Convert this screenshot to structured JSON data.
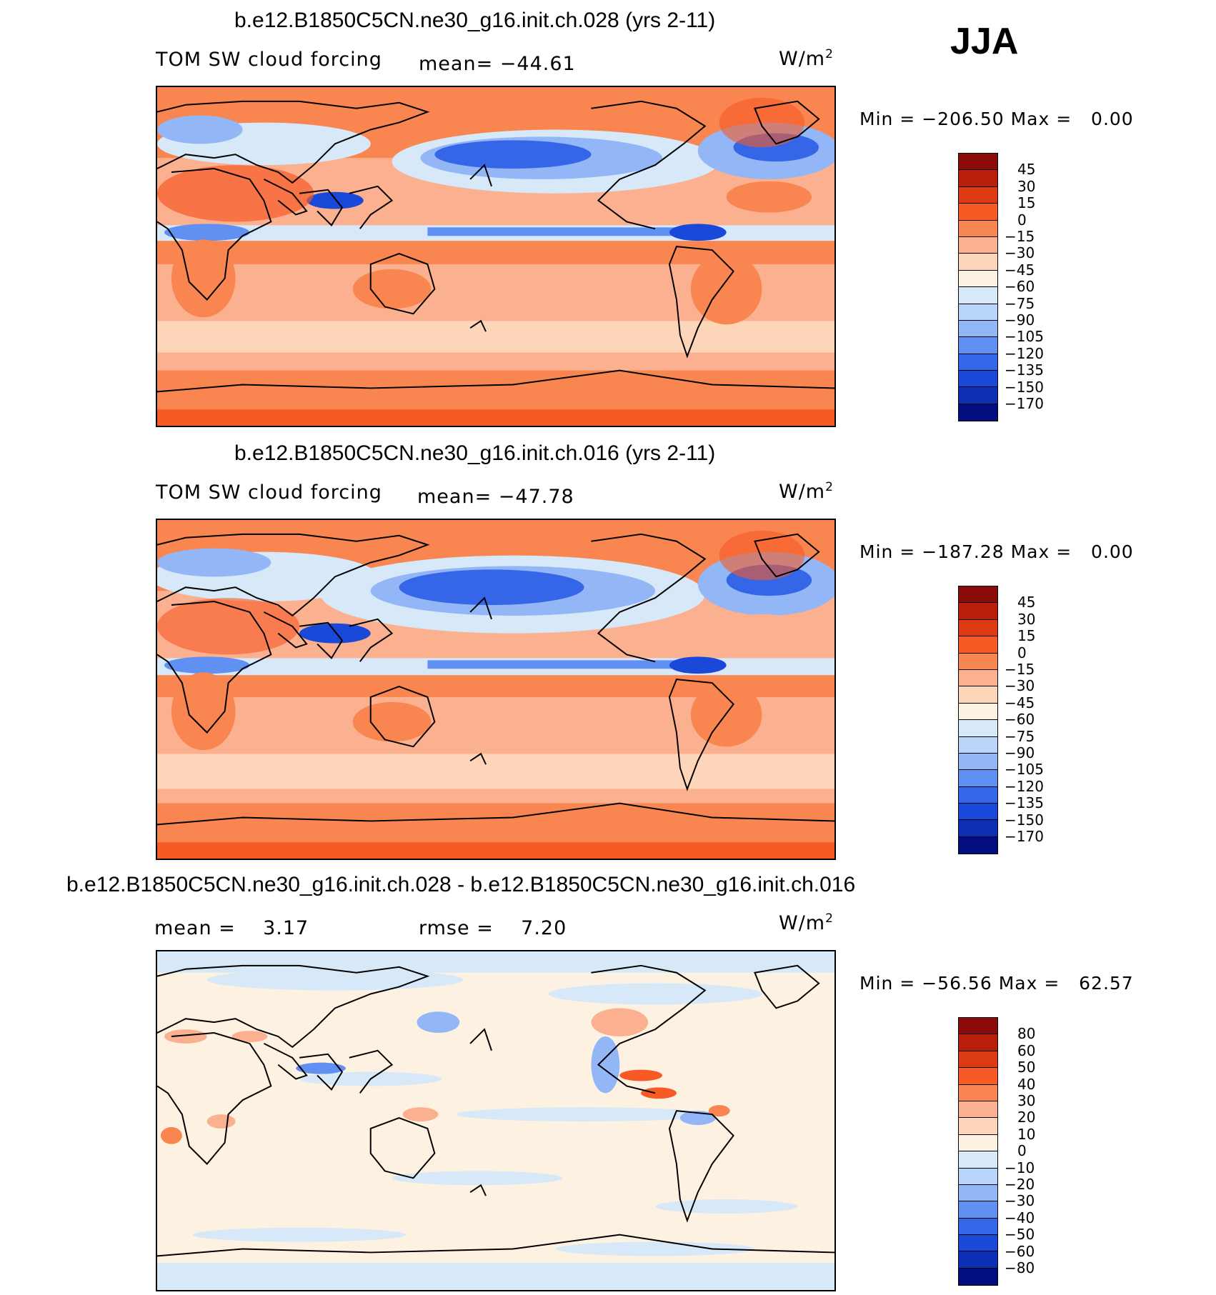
{
  "season": "JJA",
  "unit_prefix": "W/m",
  "unit_exp": "2",
  "panels": [
    {
      "title": "b.e12.B1850C5CN.ne30_g16.init.ch.028 (yrs 2-11)",
      "variable": "TOM SW cloud forcing",
      "stat1": "mean= −44.61",
      "stat2": "",
      "min_label": "Min =",
      "min_value": "−206.50",
      "max_label": "Max =",
      "max_value": "0.00",
      "levels": [
        "45",
        "30",
        "15",
        "0",
        "−15",
        "−30",
        "−45",
        "−60",
        "−75",
        "−90",
        "−105",
        "−120",
        "−135",
        "−150",
        "−170"
      ],
      "colors": [
        "#8b0a0a",
        "#b81e0a",
        "#dc3a12",
        "#f75a25",
        "#f98550",
        "#fbb090",
        "#fdd5b8",
        "#fdf1e2",
        "#d7e8f8",
        "#b8d4f8",
        "#92b6f6",
        "#6090f2",
        "#3566e8",
        "#1a48d8",
        "#0c2fb4",
        "#020d80"
      ]
    },
    {
      "title": "b.e12.B1850C5CN.ne30_g16.init.ch.016 (yrs 2-11)",
      "variable": "TOM SW cloud forcing",
      "stat1": "mean= −47.78",
      "stat2": "",
      "min_label": "Min =",
      "min_value": "−187.28",
      "max_label": "Max =",
      "max_value": "0.00",
      "levels": [
        "45",
        "30",
        "15",
        "0",
        "−15",
        "−30",
        "−45",
        "−60",
        "−75",
        "−90",
        "−105",
        "−120",
        "−135",
        "−150",
        "−170"
      ],
      "colors": [
        "#8b0a0a",
        "#b81e0a",
        "#dc3a12",
        "#f75a25",
        "#f98550",
        "#fbb090",
        "#fdd5b8",
        "#fdf1e2",
        "#d7e8f8",
        "#b8d4f8",
        "#92b6f6",
        "#6090f2",
        "#3566e8",
        "#1a48d8",
        "#0c2fb4",
        "#020d80"
      ]
    },
    {
      "title": "b.e12.B1850C5CN.ne30_g16.init.ch.028 - b.e12.B1850C5CN.ne30_g16.init.ch.016",
      "variable": "",
      "stat1": "mean =    3.17",
      "stat2": "rmse =    7.20",
      "min_label": "Min =",
      "min_value": "−56.56",
      "max_label": "Max =",
      "max_value": "62.57",
      "levels": [
        "80",
        "60",
        "50",
        "40",
        "30",
        "20",
        "10",
        "0",
        "−10",
        "−20",
        "−30",
        "−40",
        "−50",
        "−60",
        "−80"
      ],
      "colors": [
        "#8b0a0a",
        "#b81e0a",
        "#dc3a12",
        "#f75a25",
        "#f98550",
        "#fbb090",
        "#fdd5b8",
        "#fdf1e2",
        "#d7e8f8",
        "#b8d4f8",
        "#92b6f6",
        "#6090f2",
        "#3566e8",
        "#1a48d8",
        "#0c2fb4",
        "#020d80"
      ]
    }
  ]
}
